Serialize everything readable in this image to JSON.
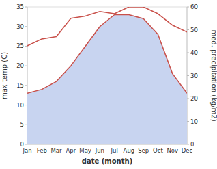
{
  "chart_data": {
    "type": "line",
    "xlabel": "date (month)",
    "ylabel": "max temp (C)",
    "y2label": "med. precipitation (kg/m2)",
    "categories": [
      "Jan",
      "Feb",
      "Mar",
      "Apr",
      "May",
      "Jun",
      "Jul",
      "Aug",
      "Sep",
      "Oct",
      "Nov",
      "Dec"
    ],
    "series": [
      {
        "type": "area",
        "color": "#c9504a",
        "values": [
          13,
          14,
          16,
          20,
          25,
          30,
          33,
          33,
          32,
          28,
          18,
          13
        ]
      },
      {
        "type": "line",
        "color": "#c9504a",
        "axis": "y2",
        "values": [
          43,
          46,
          47,
          55,
          56,
          58,
          57,
          60,
          60,
          57,
          52,
          49
        ]
      }
    ],
    "ylim": [
      0,
      35
    ],
    "yticks": [
      0,
      5,
      10,
      15,
      20,
      25,
      30,
      35
    ],
    "y2lim": [
      0,
      60
    ],
    "y2ticks": [
      0,
      10,
      20,
      30,
      40,
      50,
      60
    ],
    "grid": false
  }
}
